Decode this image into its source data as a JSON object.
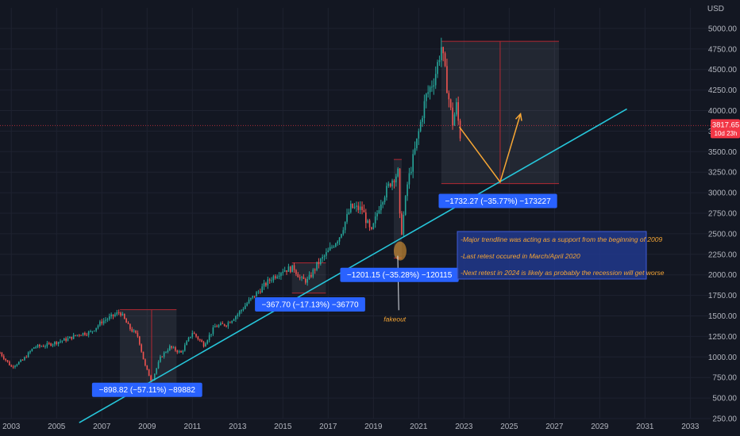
{
  "chart_data": {
    "type": "candlestick",
    "title": "",
    "currency": "USD",
    "x_ticks": [
      "2003",
      "2005",
      "2007",
      "2009",
      "2011",
      "2013",
      "2015",
      "2017",
      "2019",
      "2021",
      "2023",
      "2025",
      "2027",
      "2029",
      "2031",
      "2033"
    ],
    "xlim": [
      2002.5,
      2033.9
    ],
    "y_ticks": [
      "250.00",
      "500.00",
      "750.00",
      "1000.00",
      "1250.00",
      "1500.00",
      "1750.00",
      "2000.00",
      "2250.00",
      "2500.00",
      "2750.00",
      "3000.00",
      "3250.00",
      "3500.00",
      "3750.00",
      "4000.00",
      "4250.00",
      "4500.00",
      "4750.00",
      "5000.00"
    ],
    "ylim": [
      250,
      5250
    ],
    "grid": true,
    "series": [
      {
        "values": [
          [
            2002.5,
            1050
          ],
          [
            2003.0,
            880
          ],
          [
            2003.5,
            960
          ],
          [
            2004.0,
            1120
          ],
          [
            2004.5,
            1140
          ],
          [
            2005.0,
            1180
          ],
          [
            2005.5,
            1220
          ],
          [
            2006.0,
            1280
          ],
          [
            2006.5,
            1300
          ],
          [
            2007.0,
            1430
          ],
          [
            2007.5,
            1500
          ],
          [
            2007.8,
            1550
          ],
          [
            2008.2,
            1360
          ],
          [
            2008.6,
            1250
          ],
          [
            2008.9,
            900
          ],
          [
            2009.2,
            700
          ],
          [
            2009.6,
            1000
          ],
          [
            2010.0,
            1120
          ],
          [
            2010.5,
            1050
          ],
          [
            2011.0,
            1300
          ],
          [
            2011.5,
            1150
          ],
          [
            2012.0,
            1370
          ],
          [
            2012.5,
            1400
          ],
          [
            2013.0,
            1520
          ],
          [
            2013.5,
            1680
          ],
          [
            2014.0,
            1820
          ],
          [
            2014.5,
            1960
          ],
          [
            2015.0,
            2060
          ],
          [
            2015.5,
            2080
          ],
          [
            2015.8,
            1940
          ],
          [
            2016.1,
            1930
          ],
          [
            2016.5,
            2120
          ],
          [
            2017.0,
            2280
          ],
          [
            2017.5,
            2470
          ],
          [
            2018.0,
            2820
          ],
          [
            2018.5,
            2800
          ],
          [
            2018.9,
            2500
          ],
          [
            2019.3,
            2880
          ],
          [
            2019.8,
            3150
          ],
          [
            2020.1,
            3250
          ],
          [
            2020.2,
            2420
          ],
          [
            2020.5,
            3100
          ],
          [
            2020.9,
            3600
          ],
          [
            2021.3,
            4150
          ],
          [
            2021.7,
            4400
          ],
          [
            2022.0,
            4780
          ],
          [
            2022.3,
            4200
          ],
          [
            2022.5,
            3850
          ],
          [
            2022.7,
            4100
          ],
          [
            2022.8,
            3640
          ],
          [
            2022.9,
            3820
          ]
        ]
      }
    ],
    "last_price": "3817.65",
    "last_price_sub": "10d 23h",
    "trendline": {
      "from": [
        2006.0,
        200
      ],
      "to": [
        2030.2,
        4020
      ]
    },
    "drawdowns": [
      {
        "label": "−898.82 (−57.11%) −89882",
        "x0": 2007.8,
        "x1": 2010.3,
        "y_top": 1576,
        "y_bottom": 677,
        "divider": 2009.2
      },
      {
        "label": "−367.70 (−17.13%) −36770",
        "x0": 2015.4,
        "x1": 2016.9,
        "y_top": 2146,
        "y_bottom": 1778
      },
      {
        "label": "−1201.15 (−35.28%) −120115",
        "x0": 2019.9,
        "x1": 2020.25,
        "y_top": 3405,
        "y_bottom": 2204
      },
      {
        "label": "−1732.27 (−35.77%) −173227",
        "x0": 2022.0,
        "x1": 2027.2,
        "y_top": 4843,
        "y_bottom": 3111,
        "divider": 2024.6
      }
    ],
    "annotations": [
      {
        "text": "fakeout",
        "x": 2020.05,
        "y": 1550
      }
    ],
    "forecast_path": [
      [
        2022.8,
        3800
      ],
      [
        2024.6,
        3130
      ],
      [
        2025.5,
        3960
      ]
    ],
    "notes": [
      "-Major trendline was acting as a support from the beginning of 2009",
      "-Last retest occured in March/April 2020",
      "-Next retest in 2024 is likely as probably the recession will get worse"
    ]
  },
  "colors": {
    "background": "#131722",
    "up": "#26a69a",
    "down": "#ef5350",
    "trendline": "#26c6da",
    "badge": "#2962ff",
    "arrow": "#f7a634",
    "price_tag": "#f23645"
  }
}
